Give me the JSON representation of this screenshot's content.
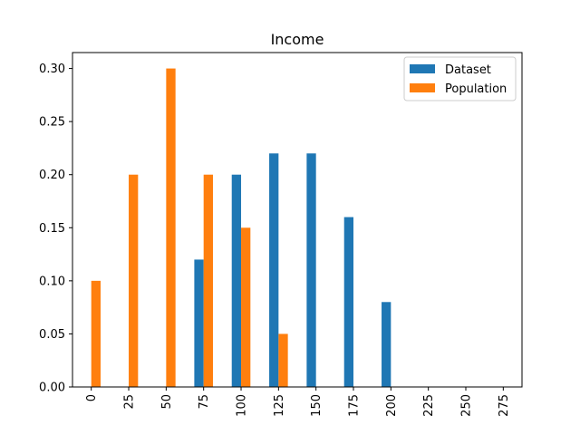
{
  "chart_data": {
    "type": "bar",
    "title": "Income",
    "xlabel": "",
    "ylabel": "",
    "categories": [
      "0",
      "25",
      "50",
      "75",
      "100",
      "125",
      "150",
      "175",
      "200",
      "225",
      "250",
      "275"
    ],
    "series": [
      {
        "name": "Dataset",
        "color": "#1f77b4",
        "values": [
          0,
          0,
          0,
          0.12,
          0.2,
          0.22,
          0.22,
          0.16,
          0.08,
          0,
          0,
          0
        ]
      },
      {
        "name": "Population",
        "color": "#ff7f0e",
        "values": [
          0.1,
          0.2,
          0.3,
          0.2,
          0.15,
          0.05,
          0,
          0,
          0,
          0,
          0,
          0
        ]
      }
    ],
    "ylim": [
      0,
      0.315
    ],
    "yticks": [
      "0.00",
      "0.05",
      "0.10",
      "0.15",
      "0.20",
      "0.25",
      "0.30"
    ],
    "ytick_values": [
      0,
      0.05,
      0.1,
      0.15,
      0.2,
      0.25,
      0.3
    ],
    "grid": false,
    "legend_position": "top-right",
    "x_tick_rotation": "vertical"
  }
}
